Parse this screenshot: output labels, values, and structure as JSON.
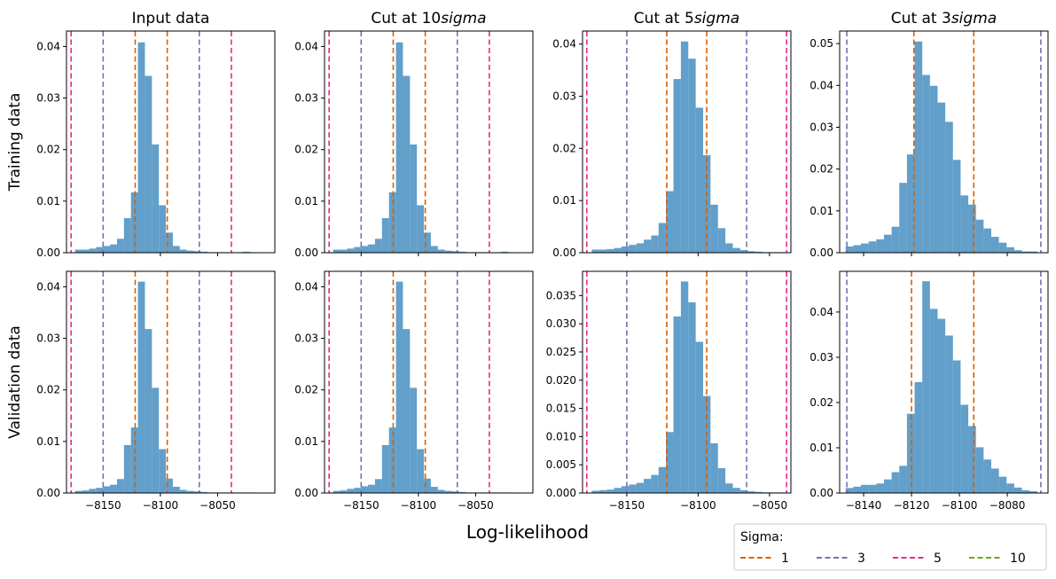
{
  "figure": {
    "xlabel": "Log-likelihood",
    "row_labels": [
      "Training data",
      "Validation data"
    ],
    "column_titles": [
      {
        "text": "Input data",
        "sigma_text": ""
      },
      {
        "text": "Cut at 10",
        "sigma_text": "sigma"
      },
      {
        "text": "Cut at 5",
        "sigma_text": "sigma"
      },
      {
        "text": "Cut at 3",
        "sigma_text": "sigma"
      }
    ],
    "legend": {
      "title": "Sigma:",
      "entries": [
        {
          "label": "1",
          "color": "#d95f02"
        },
        {
          "label": "3",
          "color": "#7570b3"
        },
        {
          "label": "5",
          "color": "#e7298a"
        },
        {
          "label": "10",
          "color": "#66a61e"
        }
      ]
    },
    "bar_color": "#4c92c3"
  },
  "chart_data": [
    {
      "type": "bar",
      "row": "Training data",
      "title": "Input data",
      "bin_edges": [
        -8174.5,
        -8168.4,
        -8162.3,
        -8156.2,
        -8150.1,
        -8144.0,
        -8137.9,
        -8131.8,
        -8125.7,
        -8119.6,
        -8113.5,
        -8107.4,
        -8101.3,
        -8095.2,
        -8089.1,
        -8083.0,
        -8076.9,
        -8070.8,
        -8064.7,
        -8058.6,
        -8052.5,
        -8046.4,
        -8040.3,
        -8034.2,
        -8028.1,
        -8022.0,
        -8015.9
      ],
      "values": [
        0.0006,
        0.0006,
        0.0008,
        0.0011,
        0.0013,
        0.0016,
        0.0027,
        0.0067,
        0.0117,
        0.0408,
        0.0343,
        0.021,
        0.0092,
        0.0039,
        0.0013,
        0.0006,
        0.0004,
        0.0003,
        0.0002,
        0.0001,
        0.0001,
        0.0001,
        0.0001,
        0.0001,
        0.0002,
        0.0001
      ],
      "vlines": [
        {
          "sigma": "1",
          "x": [
            -8122,
            -8094
          ]
        },
        {
          "sigma": "3",
          "x": [
            -8150,
            -8066
          ]
        },
        {
          "sigma": "5",
          "x": [
            -8178,
            -8038
          ]
        }
      ],
      "xlim": [
        -8182,
        -8000
      ],
      "ylim": [
        0,
        0.043
      ],
      "yticks": [
        "0.00",
        "0.01",
        "0.02",
        "0.03",
        "0.04"
      ],
      "ytick_values": [
        0,
        0.01,
        0.02,
        0.03,
        0.04
      ],
      "xticks": [],
      "xtick_values": [
        -8150,
        -8100,
        -8050
      ]
    },
    {
      "type": "bar",
      "row": "Training data",
      "title": "Cut at 10sigma",
      "bin_edges": [
        -8174.5,
        -8168.4,
        -8162.3,
        -8156.2,
        -8150.1,
        -8144.0,
        -8137.9,
        -8131.8,
        -8125.7,
        -8119.6,
        -8113.5,
        -8107.4,
        -8101.3,
        -8095.2,
        -8089.1,
        -8083.0,
        -8076.9,
        -8070.8,
        -8064.7,
        -8058.6,
        -8052.5,
        -8046.4,
        -8040.3,
        -8034.2,
        -8028.1,
        -8022.0,
        -8015.9
      ],
      "values": [
        0.0006,
        0.0006,
        0.0008,
        0.0011,
        0.0013,
        0.0016,
        0.0027,
        0.0067,
        0.0117,
        0.0408,
        0.0343,
        0.021,
        0.0092,
        0.0039,
        0.0013,
        0.0006,
        0.0004,
        0.0003,
        0.0002,
        0.0001,
        0.0001,
        0.0001,
        0.0001,
        0.0001,
        0.0002,
        0.0001
      ],
      "vlines": [
        {
          "sigma": "1",
          "x": [
            -8122,
            -8094
          ]
        },
        {
          "sigma": "3",
          "x": [
            -8150,
            -8066
          ]
        },
        {
          "sigma": "5",
          "x": [
            -8178,
            -8038
          ]
        }
      ],
      "xlim": [
        -8182,
        -8000
      ],
      "ylim": [
        0,
        0.043
      ],
      "yticks": [
        "0.00",
        "0.01",
        "0.02",
        "0.03",
        "0.04"
      ],
      "ytick_values": [
        0,
        0.01,
        0.02,
        0.03,
        0.04
      ],
      "xticks": [],
      "xtick_values": [
        -8150,
        -8100,
        -8050
      ]
    },
    {
      "type": "bar",
      "row": "Training data",
      "title": "Cut at 5sigma",
      "bin_edges": [
        -8174.5,
        -8169.3,
        -8164.1,
        -8158.9,
        -8153.7,
        -8148.5,
        -8143.3,
        -8138.1,
        -8132.9,
        -8127.7,
        -8122.5,
        -8117.3,
        -8112.1,
        -8106.9,
        -8101.7,
        -8096.5,
        -8091.3,
        -8086.1,
        -8080.9,
        -8075.7,
        -8070.5,
        -8065.3,
        -8060.1,
        -8054.9,
        -8049.7,
        -8044.5,
        -8039.3
      ],
      "values": [
        0.0006,
        0.0006,
        0.0007,
        0.0009,
        0.0012,
        0.0015,
        0.0018,
        0.0025,
        0.0033,
        0.0057,
        0.0118,
        0.0333,
        0.0405,
        0.0372,
        0.0278,
        0.0187,
        0.0092,
        0.0047,
        0.0018,
        0.0009,
        0.0005,
        0.0003,
        0.0002,
        0.0001,
        0.0001,
        0.0001
      ],
      "vlines": [
        {
          "sigma": "1",
          "x": [
            -8122,
            -8094
          ]
        },
        {
          "sigma": "3",
          "x": [
            -8150,
            -8066
          ]
        },
        {
          "sigma": "5",
          "x": [
            -8178,
            -8038
          ]
        }
      ],
      "xlim": [
        -8181,
        -8035
      ],
      "ylim": [
        0,
        0.0425
      ],
      "yticks": [
        "0.00",
        "0.01",
        "0.02",
        "0.03",
        "0.04"
      ],
      "ytick_values": [
        0,
        0.01,
        0.02,
        0.03,
        0.04
      ],
      "xticks": [],
      "xtick_values": [
        -8150,
        -8100,
        -8050
      ]
    },
    {
      "type": "bar",
      "row": "Training data",
      "title": "Cut at 3sigma",
      "bin_edges": [
        -8147.5,
        -8144.3,
        -8141.1,
        -8137.9,
        -8134.7,
        -8131.5,
        -8128.3,
        -8125.1,
        -8121.9,
        -8118.7,
        -8115.5,
        -8112.3,
        -8109.1,
        -8105.9,
        -8102.7,
        -8099.5,
        -8096.3,
        -8093.1,
        -8089.9,
        -8086.7,
        -8083.5,
        -8080.3,
        -8077.1,
        -8073.9,
        -8070.7,
        -8067.5
      ],
      "values": [
        0.0015,
        0.0018,
        0.0022,
        0.0027,
        0.0032,
        0.0043,
        0.0062,
        0.0167,
        0.0235,
        0.0505,
        0.0425,
        0.0399,
        0.0359,
        0.0313,
        0.0222,
        0.0137,
        0.0115,
        0.0079,
        0.0058,
        0.0038,
        0.0024,
        0.0013,
        0.0006,
        0.0003,
        0.0003
      ],
      "vlines": [
        {
          "sigma": "1",
          "x": [
            -8119,
            -8094
          ]
        },
        {
          "sigma": "3",
          "x": [
            -8147,
            -8066
          ]
        }
      ],
      "xlim": [
        -8150,
        -8063
      ],
      "ylim": [
        0,
        0.053
      ],
      "yticks": [
        "0.00",
        "0.01",
        "0.02",
        "0.03",
        "0.04",
        "0.05"
      ],
      "ytick_values": [
        0,
        0.01,
        0.02,
        0.03,
        0.04,
        0.05
      ],
      "xticks": [],
      "xtick_values": [
        -8140,
        -8120,
        -8100,
        -8080
      ]
    },
    {
      "type": "bar",
      "row": "Validation data",
      "title": "Input data",
      "bin_edges": [
        -8174.5,
        -8168.4,
        -8162.3,
        -8156.2,
        -8150.1,
        -8144.0,
        -8137.9,
        -8131.8,
        -8125.7,
        -8119.6,
        -8113.5,
        -8107.4,
        -8101.3,
        -8095.2,
        -8089.1,
        -8083.0,
        -8076.9,
        -8070.8,
        -8064.7,
        -8058.6,
        -8052.5,
        -8046.4,
        -8040.3,
        -8034.2,
        -8028.1,
        -8022.0,
        -8015.9
      ],
      "values": [
        0.0004,
        0.0005,
        0.0008,
        0.001,
        0.0013,
        0.0016,
        0.0027,
        0.0093,
        0.0127,
        0.041,
        0.0318,
        0.0204,
        0.0085,
        0.0028,
        0.0012,
        0.0006,
        0.0004,
        0.0003,
        0.0002,
        0.0001,
        0.0001,
        0.0001,
        0.0001,
        0.0001,
        0.0001,
        0.0001
      ],
      "vlines": [
        {
          "sigma": "1",
          "x": [
            -8122,
            -8094
          ]
        },
        {
          "sigma": "3",
          "x": [
            -8150,
            -8066
          ]
        },
        {
          "sigma": "5",
          "x": [
            -8178,
            -8038
          ]
        }
      ],
      "xlim": [
        -8182,
        -8000
      ],
      "ylim": [
        0,
        0.043
      ],
      "yticks": [
        "0.00",
        "0.01",
        "0.02",
        "0.03",
        "0.04"
      ],
      "ytick_values": [
        0,
        0.01,
        0.02,
        0.03,
        0.04
      ],
      "xticks": [
        "−8150",
        "−8100",
        "−8050"
      ],
      "xtick_values": [
        -8150,
        -8100,
        -8050
      ]
    },
    {
      "type": "bar",
      "row": "Validation data",
      "title": "Cut at 10sigma",
      "bin_edges": [
        -8174.5,
        -8168.4,
        -8162.3,
        -8156.2,
        -8150.1,
        -8144.0,
        -8137.9,
        -8131.8,
        -8125.7,
        -8119.6,
        -8113.5,
        -8107.4,
        -8101.3,
        -8095.2,
        -8089.1,
        -8083.0,
        -8076.9,
        -8070.8,
        -8064.7,
        -8058.6,
        -8052.5,
        -8046.4,
        -8040.3,
        -8034.2,
        -8028.1,
        -8022.0,
        -8015.9
      ],
      "values": [
        0.0004,
        0.0005,
        0.0008,
        0.001,
        0.0013,
        0.0016,
        0.0027,
        0.0093,
        0.0127,
        0.041,
        0.0318,
        0.0204,
        0.0085,
        0.0028,
        0.0012,
        0.0006,
        0.0004,
        0.0003,
        0.0002,
        0.0001,
        0.0001,
        0.0001,
        0.0001,
        0.0001,
        0.0001,
        0.0001
      ],
      "vlines": [
        {
          "sigma": "1",
          "x": [
            -8122,
            -8094
          ]
        },
        {
          "sigma": "3",
          "x": [
            -8150,
            -8066
          ]
        },
        {
          "sigma": "5",
          "x": [
            -8178,
            -8038
          ]
        }
      ],
      "xlim": [
        -8182,
        -8000
      ],
      "ylim": [
        0,
        0.043
      ],
      "yticks": [
        "0.00",
        "0.01",
        "0.02",
        "0.03",
        "0.04"
      ],
      "ytick_values": [
        0,
        0.01,
        0.02,
        0.03,
        0.04
      ],
      "xticks": [
        "−8150",
        "−8100",
        "−8050"
      ],
      "xtick_values": [
        -8150,
        -8100,
        -8050
      ]
    },
    {
      "type": "bar",
      "row": "Validation data",
      "title": "Cut at 5sigma",
      "bin_edges": [
        -8174.5,
        -8169.3,
        -8164.1,
        -8158.9,
        -8153.7,
        -8148.5,
        -8143.3,
        -8138.1,
        -8132.9,
        -8127.7,
        -8122.5,
        -8117.3,
        -8112.1,
        -8106.9,
        -8101.7,
        -8096.5,
        -8091.3,
        -8086.1,
        -8080.9,
        -8075.7,
        -8070.5,
        -8065.3,
        -8060.1,
        -8054.9,
        -8049.7,
        -8044.5,
        -8039.3
      ],
      "values": [
        0.0004,
        0.0005,
        0.0006,
        0.0009,
        0.0012,
        0.0015,
        0.0018,
        0.0025,
        0.0032,
        0.0046,
        0.0108,
        0.0313,
        0.0375,
        0.0338,
        0.0268,
        0.0172,
        0.0088,
        0.0044,
        0.0017,
        0.0009,
        0.0005,
        0.0003,
        0.0002,
        0.0001,
        0.0001,
        0.0001
      ],
      "vlines": [
        {
          "sigma": "1",
          "x": [
            -8122,
            -8094
          ]
        },
        {
          "sigma": "3",
          "x": [
            -8150,
            -8066
          ]
        },
        {
          "sigma": "5",
          "x": [
            -8178,
            -8038
          ]
        }
      ],
      "xlim": [
        -8181,
        -8035
      ],
      "ylim": [
        0,
        0.0393
      ],
      "yticks": [
        "0.000",
        "0.005",
        "0.010",
        "0.015",
        "0.020",
        "0.025",
        "0.030",
        "0.035"
      ],
      "ytick_values": [
        0,
        0.005,
        0.01,
        0.015,
        0.02,
        0.025,
        0.03,
        0.035
      ],
      "xticks": [
        "−8150",
        "−8100",
        "−8050"
      ],
      "xtick_values": [
        -8150,
        -8100,
        -8050
      ]
    },
    {
      "type": "bar",
      "row": "Validation data",
      "title": "Cut at 3sigma",
      "bin_edges": [
        -8147.5,
        -8144.3,
        -8141.1,
        -8137.9,
        -8134.7,
        -8131.5,
        -8128.3,
        -8125.1,
        -8121.9,
        -8118.7,
        -8115.5,
        -8112.3,
        -8109.1,
        -8105.9,
        -8102.7,
        -8099.5,
        -8096.3,
        -8093.1,
        -8089.9,
        -8086.7,
        -8083.5,
        -8080.3,
        -8077.1,
        -8073.9,
        -8070.7,
        -8067.5
      ],
      "values": [
        0.0011,
        0.0014,
        0.0018,
        0.0018,
        0.0021,
        0.003,
        0.0046,
        0.006,
        0.0175,
        0.0245,
        0.0468,
        0.0407,
        0.0385,
        0.0348,
        0.0293,
        0.0195,
        0.0148,
        0.0101,
        0.0074,
        0.0054,
        0.0036,
        0.0021,
        0.0012,
        0.0006,
        0.0004
      ],
      "vlines": [
        {
          "sigma": "1",
          "x": [
            -8120,
            -8094
          ]
        },
        {
          "sigma": "3",
          "x": [
            -8147,
            -8066
          ]
        }
      ],
      "xlim": [
        -8150,
        -8063
      ],
      "ylim": [
        0,
        0.049
      ],
      "yticks": [
        "0.00",
        "0.01",
        "0.02",
        "0.03",
        "0.04"
      ],
      "ytick_values": [
        0,
        0.01,
        0.02,
        0.03,
        0.04
      ],
      "xticks": [
        "−8140",
        "−8120",
        "−8100",
        "−8080"
      ],
      "xtick_values": [
        -8140,
        -8120,
        -8100,
        -8080
      ]
    }
  ]
}
